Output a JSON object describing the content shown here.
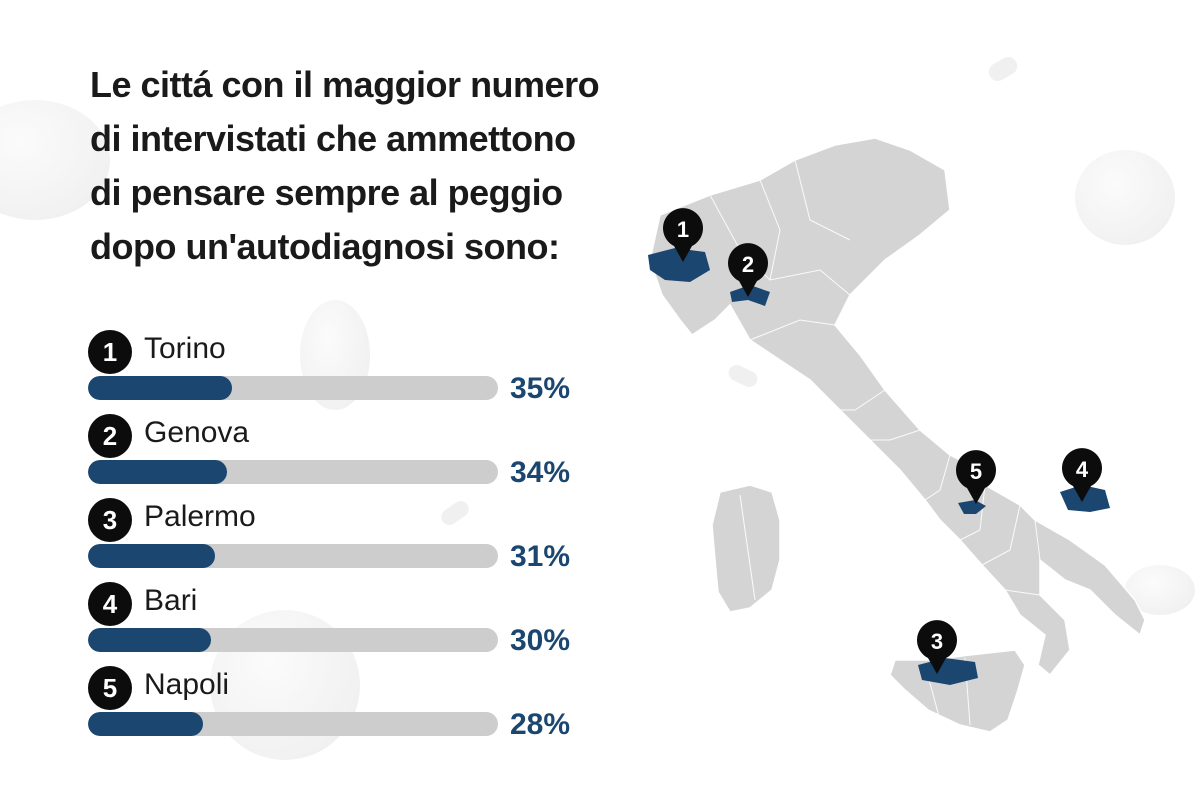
{
  "title": "Le cittá con il maggior numero di intervistati che ammettono di pensare sempre al peggio dopo un'autodiagnosi sono:",
  "colors": {
    "accent": "#1b4670",
    "track": "#cdcdcd",
    "badge": "#0c0c0c",
    "map_fill": "#d4d4d4",
    "map_highlight": "#1b4670"
  },
  "chart_data": {
    "type": "bar",
    "orientation": "horizontal",
    "categories": [
      "Torino",
      "Genova",
      "Palermo",
      "Bari",
      "Napoli"
    ],
    "ranks": [
      "1",
      "2",
      "3",
      "4",
      "5"
    ],
    "values": [
      35,
      34,
      31,
      30,
      28
    ],
    "value_labels": [
      "35%",
      "34%",
      "31%",
      "30%",
      "28%"
    ],
    "unit": "%",
    "xlim": [
      0,
      100
    ]
  },
  "map": {
    "markers": [
      {
        "rank": "1",
        "city": "Torino"
      },
      {
        "rank": "2",
        "city": "Genova"
      },
      {
        "rank": "3",
        "city": "Palermo"
      },
      {
        "rank": "4",
        "city": "Bari"
      },
      {
        "rank": "5",
        "city": "Napoli"
      }
    ]
  }
}
